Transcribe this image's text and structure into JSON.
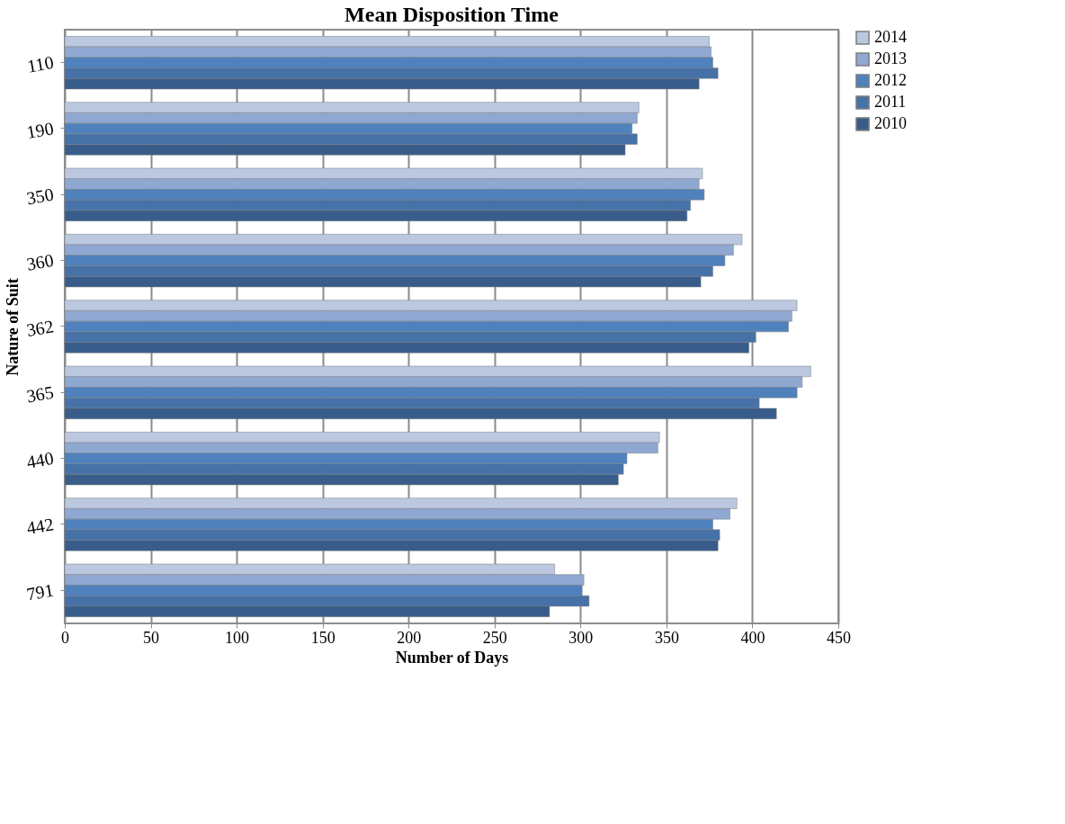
{
  "chart_data": {
    "type": "bar",
    "orientation": "horizontal",
    "title": "Mean Disposition Time",
    "xlabel": "Number of Days",
    "ylabel": "Nature of Suit",
    "categories": [
      "110",
      "190",
      "350",
      "360",
      "362",
      "365",
      "440",
      "442",
      "791"
    ],
    "series": [
      {
        "name": "2014",
        "color": "#bcc8e0",
        "values": [
          375,
          334,
          371,
          394,
          426,
          434,
          346,
          391,
          285
        ]
      },
      {
        "name": "2013",
        "color": "#8fa8d2",
        "values": [
          376,
          333,
          369,
          389,
          423,
          429,
          345,
          387,
          302
        ]
      },
      {
        "name": "2012",
        "color": "#4f81bd",
        "values": [
          377,
          330,
          372,
          384,
          421,
          426,
          327,
          377,
          301
        ]
      },
      {
        "name": "2011",
        "color": "#4672a8",
        "values": [
          380,
          333,
          364,
          377,
          402,
          404,
          325,
          381,
          305
        ]
      },
      {
        "name": "2010",
        "color": "#385d8a",
        "values": [
          369,
          326,
          362,
          370,
          398,
          414,
          322,
          380,
          282
        ]
      }
    ],
    "xlim": [
      0,
      450
    ],
    "xticks": [
      0,
      50,
      100,
      150,
      200,
      250,
      300,
      350,
      400,
      450
    ],
    "grid": "x",
    "legend": "right"
  }
}
